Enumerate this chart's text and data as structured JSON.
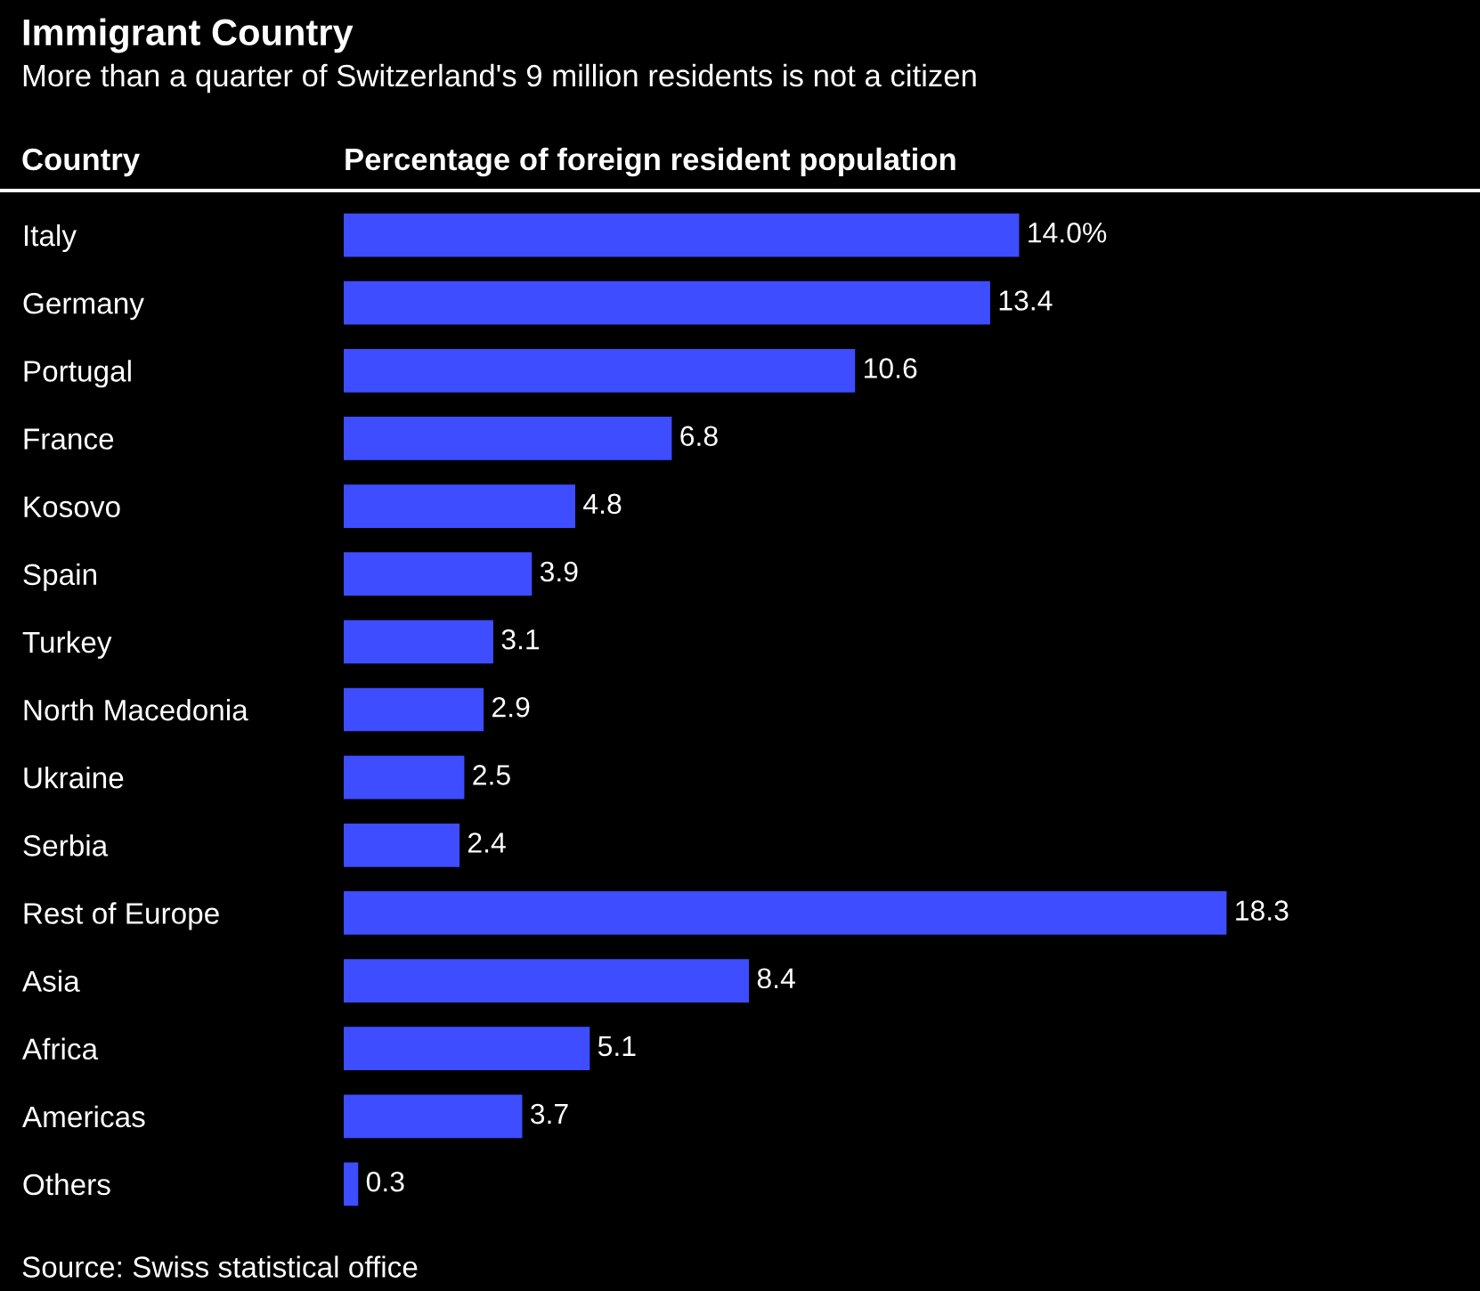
{
  "chart_data": {
    "type": "bar",
    "orientation": "horizontal",
    "title": "Immigrant Country",
    "subtitle": "More than a quarter of Switzerland's 9 million residents is not a citizen",
    "ylabel": "Country",
    "xlabel": "Percentage of foreign resident population",
    "categories": [
      "Italy",
      "Germany",
      "Portugal",
      "France",
      "Kosovo",
      "Spain",
      "Turkey",
      "North Macedonia",
      "Ukraine",
      "Serbia",
      "Rest of Europe",
      "Asia",
      "Africa",
      "Americas",
      "Others"
    ],
    "values": [
      14.0,
      13.4,
      10.6,
      6.8,
      4.8,
      3.9,
      3.1,
      2.9,
      2.5,
      2.4,
      18.3,
      8.4,
      5.1,
      3.7,
      0.3
    ],
    "value_labels": [
      "14.0%",
      "13.4",
      "10.6",
      "6.8",
      "4.8",
      "3.9",
      "3.1",
      "2.9",
      "2.5",
      "2.4",
      "18.3",
      "8.4",
      "5.1",
      "3.7",
      "0.3"
    ],
    "color": "#3d4dff",
    "grid": false,
    "legend": false,
    "annotations": [
      "Source: Swiss statistical office"
    ]
  }
}
